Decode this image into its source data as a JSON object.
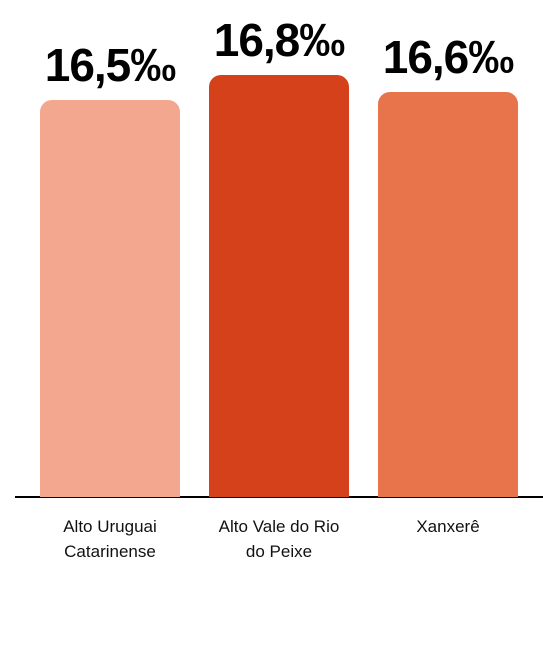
{
  "chart_data": {
    "type": "bar",
    "categories": [
      "Alto Uruguai Catarinense",
      "Alto Vale do Rio do Peixe",
      "Xanxerê"
    ],
    "values": [
      16.5,
      16.8,
      16.6
    ],
    "value_labels": [
      "16,5‰",
      "16,8‰",
      "16,6‰"
    ],
    "colors": [
      "#f4a78f",
      "#d4411a",
      "#e8744b"
    ],
    "ylim": [
      11.7,
      16.8
    ]
  }
}
